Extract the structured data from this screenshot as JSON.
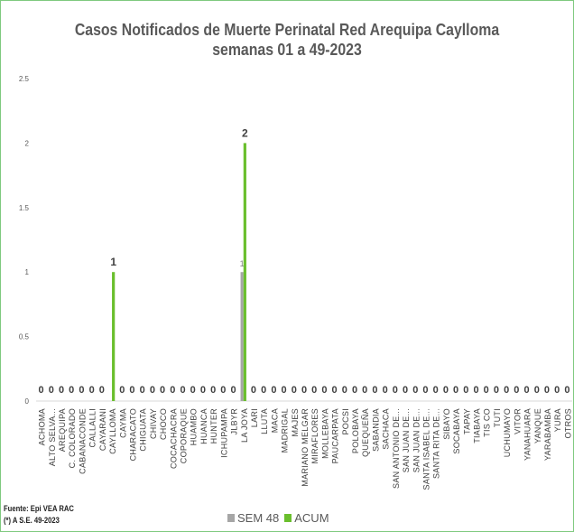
{
  "chart_data": {
    "type": "bar",
    "title": "Casos Notificados de Muerte Perinatal Red Arequipa Caylloma",
    "subtitle": "semanas 01 a 49-2023",
    "ylim": [
      0,
      2.5
    ],
    "yticks": [
      "0",
      "0.5",
      "1",
      "1.5",
      "2",
      "2.5"
    ],
    "grid": false,
    "legend_position": "bottom",
    "categories": [
      "ACHOMA",
      "ALTO SELVA...",
      "AREQUIPA",
      "C. COLORADO",
      "CABANACONDE",
      "CALLALLI",
      "CAYARANI",
      "CAYLLOMA",
      "CAYMA",
      "CHARACATO",
      "CHIGUATA",
      "CHIVAY",
      "CHOCO",
      "COCACHACRA",
      "COPORAQUE",
      "HUAMBO",
      "HUANCA",
      "HUNTER",
      "ICHUPAMPA",
      "JLBYR",
      "LA JOYA",
      "LARI",
      "LLUTA",
      "MACA",
      "MADRIGAL",
      "MAJES",
      "MARIANO MELGAR",
      "MIRAFLORES",
      "MOLLEBAYA",
      "PAUCARPATA",
      "POCSI",
      "POLOBAYA",
      "QUEQUEÑA",
      "SABANDIA",
      "SACHACA",
      "SAN ANTONIO DE...",
      "SAN JUAN DE...",
      "SAN JUAN DE...",
      "SANTA ISABEL DE...",
      "SANTA RITA DE...",
      "SIBAYO",
      "SOCABAYA",
      "TAPAY",
      "TIABAYA",
      "TIS CO",
      "TUTI",
      "UCHUMAYO",
      "VITOR",
      "YANAHUARA",
      "YANQUE",
      "YARABAMBA",
      "YURA",
      "OTROS"
    ],
    "series": [
      {
        "name": "SEM 48",
        "color": "#a6a6a6",
        "values": [
          0,
          0,
          0,
          0,
          0,
          0,
          0,
          0,
          0,
          0,
          0,
          0,
          0,
          0,
          0,
          0,
          0,
          0,
          0,
          0,
          1,
          0,
          0,
          0,
          0,
          0,
          0,
          0,
          0,
          0,
          0,
          0,
          0,
          0,
          0,
          0,
          0,
          0,
          0,
          0,
          0,
          0,
          0,
          0,
          0,
          0,
          0,
          0,
          0,
          0,
          0,
          0,
          0
        ]
      },
      {
        "name": "ACUM",
        "color": "#6abf2d",
        "values": [
          0,
          0,
          0,
          0,
          0,
          0,
          0,
          1,
          0,
          0,
          0,
          0,
          0,
          0,
          0,
          0,
          0,
          0,
          0,
          0,
          2,
          0,
          0,
          0,
          0,
          0,
          0,
          0,
          0,
          0,
          0,
          0,
          0,
          0,
          0,
          0,
          0,
          0,
          0,
          0,
          0,
          0,
          0,
          0,
          0,
          0,
          0,
          0,
          0,
          0,
          0,
          0,
          0
        ]
      }
    ]
  },
  "footer": {
    "source": "Fuente: Epi VEA RAC",
    "note": "(*) A S.E. 49-2023"
  }
}
